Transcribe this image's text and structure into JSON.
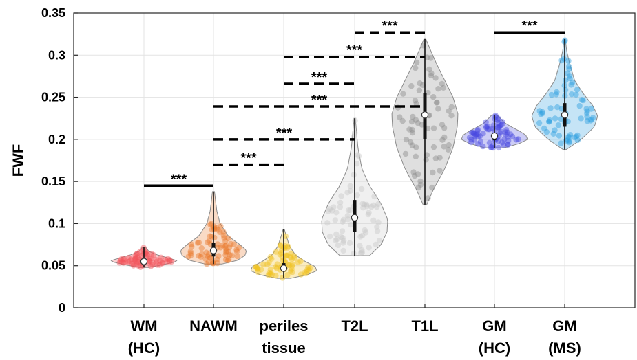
{
  "chart_data": {
    "type": "violin",
    "ylabel": "FWF",
    "ylim": [
      0,
      0.35
    ],
    "yticks": [
      "0",
      "0.05",
      "0.1",
      "0.15",
      "0.2",
      "0.25",
      "0.3",
      "0.35"
    ],
    "grid": true,
    "categories": [
      {
        "line1": "WM",
        "line2": "(HC)",
        "color": "#f2545a",
        "median": 0.055,
        "q1": 0.052,
        "q3": 0.059,
        "min": 0.048,
        "max": 0.072,
        "profile": [
          [
            0.048,
            0.15
          ],
          [
            0.051,
            0.55
          ],
          [
            0.054,
            0.9
          ],
          [
            0.056,
            1.0
          ],
          [
            0.059,
            0.75
          ],
          [
            0.063,
            0.4
          ],
          [
            0.067,
            0.15
          ],
          [
            0.072,
            0.05
          ]
        ]
      },
      {
        "line1": "NAWM",
        "line2": "",
        "color": "#e8792e",
        "median": 0.068,
        "q1": 0.061,
        "q3": 0.077,
        "min": 0.052,
        "max": 0.138,
        "profile": [
          [
            0.052,
            0.25
          ],
          [
            0.056,
            0.7
          ],
          [
            0.062,
            0.95
          ],
          [
            0.068,
            1.0
          ],
          [
            0.075,
            0.8
          ],
          [
            0.085,
            0.45
          ],
          [
            0.1,
            0.2
          ],
          [
            0.115,
            0.1
          ],
          [
            0.138,
            0.03
          ]
        ]
      },
      {
        "line1": "periles",
        "line2": "tissue",
        "color": "#f0c020",
        "median": 0.047,
        "q1": 0.043,
        "q3": 0.053,
        "min": 0.035,
        "max": 0.093,
        "profile": [
          [
            0.035,
            0.2
          ],
          [
            0.039,
            0.7
          ],
          [
            0.044,
            1.0
          ],
          [
            0.049,
            0.95
          ],
          [
            0.055,
            0.65
          ],
          [
            0.063,
            0.35
          ],
          [
            0.073,
            0.18
          ],
          [
            0.085,
            0.08
          ],
          [
            0.093,
            0.02
          ]
        ]
      },
      {
        "line1": "T2L",
        "line2": "",
        "color": "#c8c8c8",
        "median": 0.107,
        "q1": 0.09,
        "q3": 0.128,
        "min": 0.062,
        "max": 0.225,
        "profile": [
          [
            0.062,
            0.45
          ],
          [
            0.075,
            0.8
          ],
          [
            0.09,
            0.98
          ],
          [
            0.105,
            1.0
          ],
          [
            0.125,
            0.78
          ],
          [
            0.145,
            0.45
          ],
          [
            0.165,
            0.22
          ],
          [
            0.19,
            0.1
          ],
          [
            0.225,
            0.02
          ]
        ]
      },
      {
        "line1": "T1L",
        "line2": "",
        "color": "#8c8c8c",
        "median": 0.229,
        "q1": 0.2,
        "q3": 0.255,
        "min": 0.122,
        "max": 0.319,
        "profile": [
          [
            0.122,
            0.05
          ],
          [
            0.14,
            0.25
          ],
          [
            0.165,
            0.6
          ],
          [
            0.19,
            0.85
          ],
          [
            0.215,
            0.98
          ],
          [
            0.23,
            1.0
          ],
          [
            0.25,
            0.85
          ],
          [
            0.27,
            0.6
          ],
          [
            0.29,
            0.35
          ],
          [
            0.305,
            0.18
          ],
          [
            0.319,
            0.03
          ]
        ]
      },
      {
        "line1": "GM",
        "line2": "(HC)",
        "color": "#4a4ae0",
        "median": 0.204,
        "q1": 0.199,
        "q3": 0.208,
        "min": 0.19,
        "max": 0.229,
        "profile": [
          [
            0.19,
            0.3
          ],
          [
            0.195,
            0.75
          ],
          [
            0.2,
            1.0
          ],
          [
            0.205,
            0.95
          ],
          [
            0.21,
            0.75
          ],
          [
            0.215,
            0.5
          ],
          [
            0.22,
            0.3
          ],
          [
            0.229,
            0.08
          ]
        ]
      },
      {
        "line1": "GM",
        "line2": "(MS)",
        "color": "#2f9fe0",
        "median": 0.229,
        "q1": 0.215,
        "q3": 0.243,
        "min": 0.188,
        "max": 0.319,
        "profile": [
          [
            0.188,
            0.05
          ],
          [
            0.2,
            0.5
          ],
          [
            0.215,
            0.9
          ],
          [
            0.228,
            1.0
          ],
          [
            0.24,
            0.85
          ],
          [
            0.255,
            0.55
          ],
          [
            0.27,
            0.3
          ],
          [
            0.29,
            0.15
          ],
          [
            0.305,
            0.06
          ],
          [
            0.319,
            0.02
          ]
        ]
      }
    ],
    "comparisons": [
      {
        "from": 0,
        "to": 1,
        "y": 0.145,
        "style": "solid",
        "label": "***"
      },
      {
        "from": 1,
        "to": 2,
        "y": 0.17,
        "style": "dashed",
        "label": "***"
      },
      {
        "from": 1,
        "to": 3,
        "y": 0.2,
        "style": "dashed",
        "label": "***"
      },
      {
        "from": 1,
        "to": 4,
        "y": 0.239,
        "style": "dashed",
        "label": "***"
      },
      {
        "from": 2,
        "to": 3,
        "y": 0.266,
        "style": "dashed",
        "label": "***"
      },
      {
        "from": 2,
        "to": 4,
        "y": 0.298,
        "style": "dashed",
        "label": "***"
      },
      {
        "from": 3,
        "to": 4,
        "y": 0.327,
        "style": "dashed",
        "label": "***"
      },
      {
        "from": 5,
        "to": 6,
        "y": 0.327,
        "style": "solid",
        "label": "***"
      }
    ]
  }
}
